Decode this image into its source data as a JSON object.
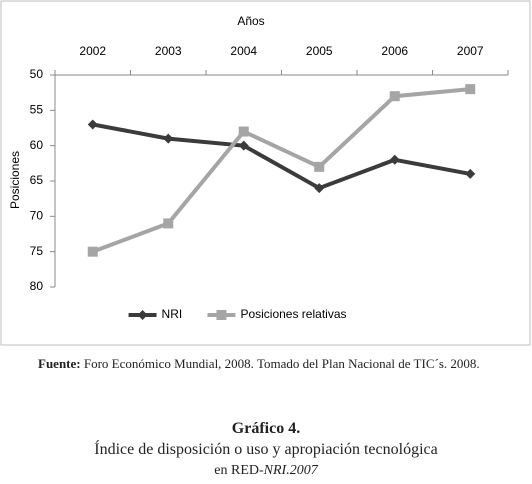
{
  "chart_data": {
    "type": "line",
    "x_label": "Años",
    "y_label": "Posiciones",
    "categories": [
      "2002",
      "2003",
      "2004",
      "2005",
      "2006",
      "2007"
    ],
    "series": [
      {
        "name": "NRI",
        "color": "#3b3b3b",
        "marker": "diamond",
        "values": [
          57,
          59,
          60,
          66,
          62,
          64
        ]
      },
      {
        "name": "Posiciones relativas",
        "color": "#a5a5a5",
        "marker": "square",
        "values": [
          75,
          71,
          58,
          63,
          53,
          52
        ]
      }
    ],
    "ylim": [
      50,
      80
    ],
    "yticks": [
      50,
      55,
      60,
      65,
      70,
      75,
      80
    ],
    "y_inverted": true,
    "grid": false,
    "legend": "bottom"
  },
  "caption": {
    "source_label": "Fuente:",
    "source_text": "Foro Económico Mundial, 2008. Tomado del Plan Nacional de TIC´s. 2008.",
    "figure_number": "Gráfico 4.",
    "figure_title": "Índice de disposición o uso y apropiación tecnológica",
    "figure_subtitle_prefix": "en RED-",
    "figure_subtitle_italic": "NRI.2007"
  }
}
